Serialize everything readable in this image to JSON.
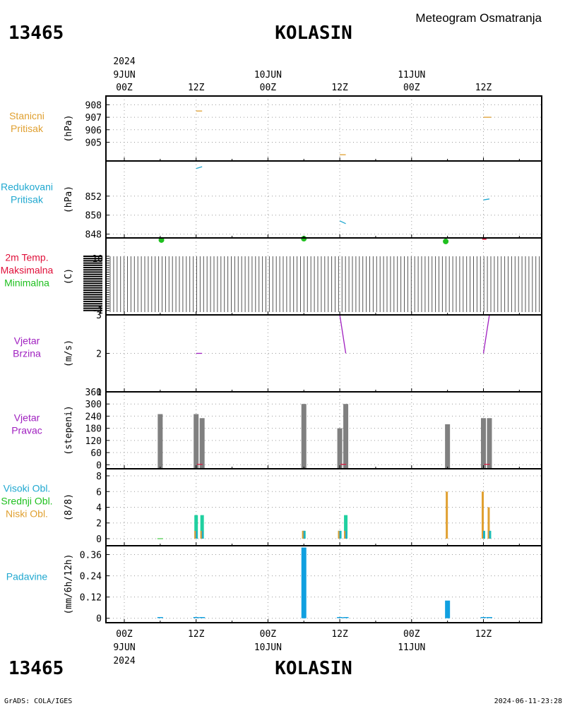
{
  "header": {
    "station_id": "13465",
    "station_name": "KOLASIN",
    "title": "Meteogram Osmatranja"
  },
  "footer": {
    "credit": "GrADS: COLA/IGES",
    "timestamp": "2024-06-11-23:28"
  },
  "time_axis": {
    "year": "2024",
    "start_hour": 0,
    "end_hour": 72,
    "hour_ticks": [
      {
        "hour": 0,
        "label": "00Z",
        "date": "9JUN"
      },
      {
        "hour": 12,
        "label": "12Z",
        "date": ""
      },
      {
        "hour": 24,
        "label": "00Z",
        "date": "10JUN"
      },
      {
        "hour": 36,
        "label": "12Z",
        "date": ""
      },
      {
        "hour": 48,
        "label": "00Z",
        "date": "11JUN"
      },
      {
        "hour": 60,
        "label": "12Z",
        "date": ""
      }
    ]
  },
  "colors": {
    "orange": "#e0a030",
    "cyan": "#20a8d0",
    "purple": "#a020c0",
    "red": "#e0103a",
    "green": "#20c020",
    "gray": "#808080",
    "teal": "#20d0a0",
    "blue": "#10a0e0",
    "grid": "#9a9a9a"
  },
  "chart_data": [
    {
      "id": "stanicni_pritisak",
      "type": "line",
      "labels": [
        {
          "text": "Stanicni",
          "color": "orange"
        },
        {
          "text": "Pritisak",
          "color": "orange"
        }
      ],
      "unit": "(hPa)",
      "ylim": [
        903.5,
        908.7
      ],
      "yticks": [
        905,
        906,
        907,
        908
      ],
      "ytick_labels": [
        "905",
        "906",
        "907",
        "908"
      ],
      "series": [
        {
          "color": "orange",
          "points": [
            [
              12.0,
              907.5
            ],
            [
              13.0,
              907.5
            ]
          ]
        },
        {
          "color": "orange",
          "points": [
            [
              36.0,
              904.0
            ],
            [
              37.0,
              904.0
            ]
          ]
        },
        {
          "color": "orange",
          "points": [
            [
              60.0,
              907.0
            ],
            [
              61.3,
              907.0
            ]
          ]
        }
      ]
    },
    {
      "id": "redukovani_pritisak",
      "type": "line",
      "labels": [
        {
          "text": "Redukovani",
          "color": "cyan"
        },
        {
          "text": "Pritisak",
          "color": "cyan"
        }
      ],
      "unit": "(hPa)",
      "ylim": [
        847.6,
        855.7
      ],
      "yticks": [
        848,
        850,
        852
      ],
      "ytick_labels": [
        "848",
        "850",
        "852"
      ],
      "series": [
        {
          "color": "cyan",
          "points": [
            [
              12.0,
              854.9
            ],
            [
              13.0,
              855.1
            ]
          ]
        },
        {
          "color": "cyan",
          "points": [
            [
              36.0,
              849.4
            ],
            [
              37.0,
              849.1
            ]
          ]
        },
        {
          "color": "cyan",
          "points": [
            [
              60.0,
              851.6
            ],
            [
              61.0,
              851.7
            ]
          ]
        }
      ]
    },
    {
      "id": "temperatura",
      "type": "scatter",
      "labels": [
        {
          "text": "2m Temp.",
          "color": "red"
        },
        {
          "text": "Maksimalna",
          "color": "red"
        },
        {
          "text": "Minimalna",
          "color": "green"
        }
      ],
      "unit": "(C)",
      "ylim": [
        -1,
        10
      ],
      "ytick_labels": [
        "10",
        "-1"
      ],
      "points": [
        {
          "x": 6.2,
          "y": 9.7,
          "color": "green"
        },
        {
          "x": 30.0,
          "y": 9.9,
          "color": "green"
        },
        {
          "x": 53.7,
          "y": 9.5,
          "color": "green"
        }
      ],
      "segments": [
        {
          "color": "red",
          "points": [
            [
              59.8,
              10.0
            ],
            [
              60.5,
              10.0
            ]
          ]
        }
      ]
    },
    {
      "id": "vjetar_brzina",
      "type": "line",
      "labels": [
        {
          "text": "Vjetar",
          "color": "purple"
        },
        {
          "text": "Brzina",
          "color": "purple"
        }
      ],
      "unit": "(m/s)",
      "ylim": [
        1,
        3
      ],
      "yticks": [
        1,
        2,
        3
      ],
      "ytick_labels": [
        "1",
        "2",
        "3"
      ],
      "series": [
        {
          "color": "purple",
          "points": [
            [
              12.0,
              2.0
            ],
            [
              13.0,
              2.0
            ]
          ]
        },
        {
          "color": "purple",
          "points": [
            [
              36.0,
              3.0
            ],
            [
              37.0,
              2.0
            ]
          ]
        },
        {
          "color": "purple",
          "points": [
            [
              60.0,
              2.0
            ],
            [
              61.0,
              3.0
            ]
          ]
        }
      ]
    },
    {
      "id": "vjetar_pravac",
      "type": "bar",
      "labels": [
        {
          "text": "Vjetar",
          "color": "purple"
        },
        {
          "text": "Pravac",
          "color": "purple"
        }
      ],
      "unit": "(stepeni)",
      "ylim": [
        -20,
        360
      ],
      "yticks": [
        0,
        60,
        120,
        180,
        240,
        300,
        360
      ],
      "ytick_labels": [
        "0",
        "60",
        "120",
        "180",
        "240",
        "300",
        "360"
      ],
      "bars": [
        {
          "x": 6.0,
          "value": 250
        },
        {
          "x": 12.0,
          "value": 250
        },
        {
          "x": 13.0,
          "value": 230
        },
        {
          "x": 30.0,
          "value": 300
        },
        {
          "x": 36.0,
          "value": 180
        },
        {
          "x": 37.0,
          "value": 300
        },
        {
          "x": 54.0,
          "value": 200
        },
        {
          "x": 60.0,
          "value": 230
        },
        {
          "x": 61.0,
          "value": 230
        }
      ],
      "marks": [
        {
          "x": 12.6,
          "color": "red"
        },
        {
          "x": 36.6,
          "color": "red"
        },
        {
          "x": 60.6,
          "color": "red"
        }
      ]
    },
    {
      "id": "oblacnost",
      "type": "bar",
      "labels": [
        {
          "text": "Visoki Obl.",
          "color": "cyan"
        },
        {
          "text": "Srednji Obl.",
          "color": "green"
        },
        {
          "text": "Niski Obl.",
          "color": "orange"
        }
      ],
      "unit": "(8/8)",
      "ylim": [
        -0.9,
        8.9
      ],
      "yticks": [
        0,
        2,
        4,
        6,
        8
      ],
      "ytick_labels": [
        "0",
        "2",
        "4",
        "6",
        "8"
      ],
      "bars": [
        {
          "x": 12.0,
          "visoki": 1,
          "srednji": 3,
          "niski": 1
        },
        {
          "x": 13.0,
          "visoki": 1,
          "srednji": 3,
          "niski": 1
        },
        {
          "x": 30.0,
          "visoki": 1,
          "srednji": 1,
          "niski": 1
        },
        {
          "x": 36.0,
          "visoki": 1,
          "srednji": 1,
          "niski": 1
        },
        {
          "x": 37.0,
          "visoki": 1,
          "srednji": 3,
          "niski": 1
        },
        {
          "x": 54.0,
          "visoki": 0,
          "srednji": 0,
          "niski": 6
        },
        {
          "x": 60.0,
          "visoki": 1,
          "srednji": 1,
          "niski": 6
        },
        {
          "x": 61.0,
          "visoki": 1,
          "srednji": 1,
          "niski": 4
        }
      ],
      "ticks_only": [
        6.0
      ]
    },
    {
      "id": "padavine",
      "type": "bar",
      "labels": [
        {
          "text": "Padavine",
          "color": "cyan"
        }
      ],
      "unit": "(mm/6h/12h)",
      "ylim": [
        -0.025,
        0.41
      ],
      "yticks": [
        0,
        0.12,
        0.24,
        0.36
      ],
      "ytick_labels": [
        "0",
        "0.12",
        "0.24",
        "0.36"
      ],
      "bars": [
        {
          "x": 30.0,
          "value": 0.4
        },
        {
          "x": 54.0,
          "value": 0.1
        }
      ],
      "zero_bars": [
        6.0,
        12.0,
        13.0,
        36.0,
        37.0,
        60.0,
        61.0
      ]
    }
  ]
}
